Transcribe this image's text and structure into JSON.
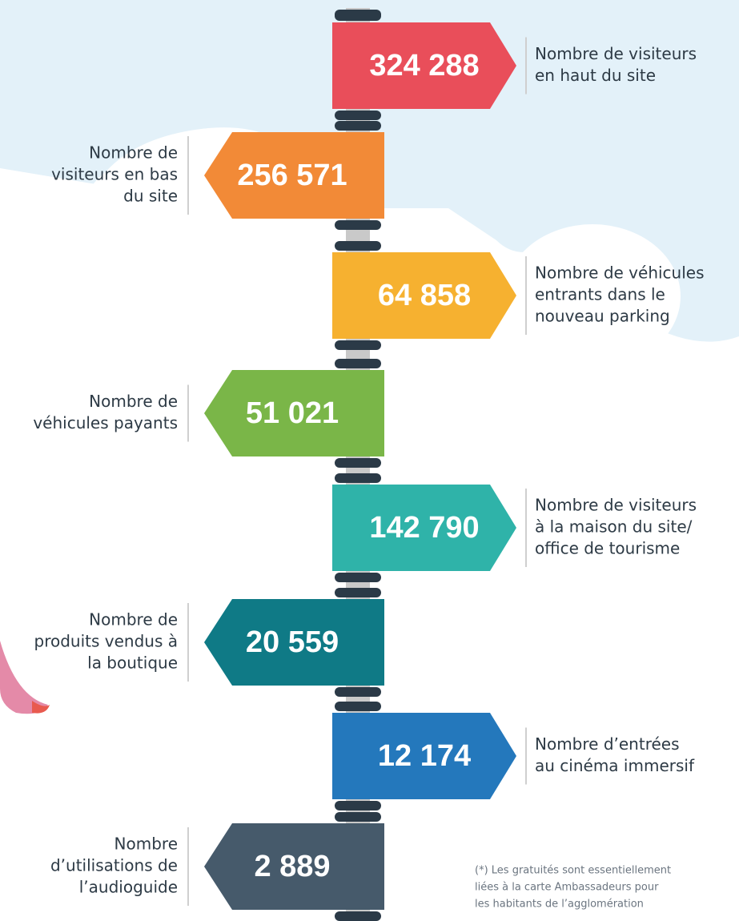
{
  "items": [
    {
      "value": "324 288",
      "label": [
        "Nombre de visiteurs",
        "en haut du site"
      ],
      "color": "#e94e5a"
    },
    {
      "value": "256 571",
      "label": [
        "Nombre de",
        "visiteurs en bas",
        "du site"
      ],
      "color": "#f28a37"
    },
    {
      "value": "64 858",
      "label": [
        "Nombre de véhicules",
        "entrants dans le",
        "nouveau parking"
      ],
      "color": "#f6b130"
    },
    {
      "value": "51 021",
      "label": [
        "Nombre de",
        "véhicules payants"
      ],
      "color": "#7ab648"
    },
    {
      "value": "142 790",
      "label": [
        "Nombre de visiteurs",
        "à la maison du site/",
        "office de tourisme"
      ],
      "color": "#2fb3a9"
    },
    {
      "value": "20 559",
      "label": [
        "Nombre de",
        "produits vendus à",
        "la boutique"
      ],
      "color": "#0f7a86"
    },
    {
      "value": "12 174",
      "label": [
        "Nombre d’entrées",
        "au cinéma immersif"
      ],
      "color": "#2478bc"
    },
    {
      "value": "2 889",
      "label": [
        "Nombre",
        "d’utilisations de",
        "l’audioguide"
      ],
      "color": "#465a6b"
    }
  ],
  "footnote": [
    "(*) Les gratuités sont essentiellement",
    "liées à la carte Ambassadeurs pour",
    "les habitants de l’agglomération"
  ]
}
